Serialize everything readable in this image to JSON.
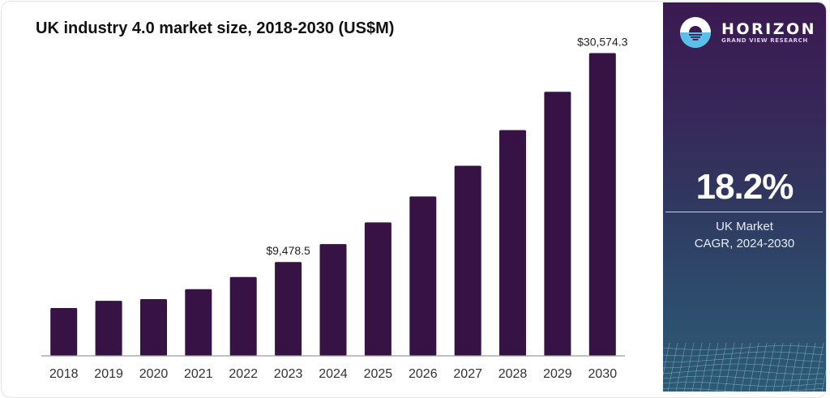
{
  "chart_data": {
    "type": "bar",
    "title": "UK industry 4.0 market size, 2018-2030 (US$M)",
    "xlabel": "",
    "ylabel": "",
    "categories": [
      "2018",
      "2019",
      "2020",
      "2021",
      "2022",
      "2023",
      "2024",
      "2025",
      "2026",
      "2027",
      "2028",
      "2029",
      "2030"
    ],
    "values": [
      4830,
      5560,
      5730,
      6730,
      7960,
      9478.5,
      11290,
      13470,
      16090,
      19200,
      22800,
      26670,
      30574.3
    ],
    "ylim": [
      0,
      30574.3
    ],
    "grid": false,
    "legend": "none",
    "bar_color": "#361245",
    "data_labels": [
      {
        "category": "2023",
        "text": "$9,478.5"
      },
      {
        "category": "2030",
        "text": "$30,574.3"
      }
    ]
  },
  "side_panel": {
    "brand_name": "HORIZON",
    "brand_subtitle": "GRAND VIEW RESEARCH",
    "cagr_value": "18.2%",
    "cagr_line1": "UK Market",
    "cagr_line2": "CAGR, 2024-2030",
    "logo_icon": "horizon-sun-icon",
    "colors": {
      "panel_top": "#3a1a50",
      "panel_bottom": "#2e5a74",
      "logo_water": "#5bc0e8"
    }
  }
}
